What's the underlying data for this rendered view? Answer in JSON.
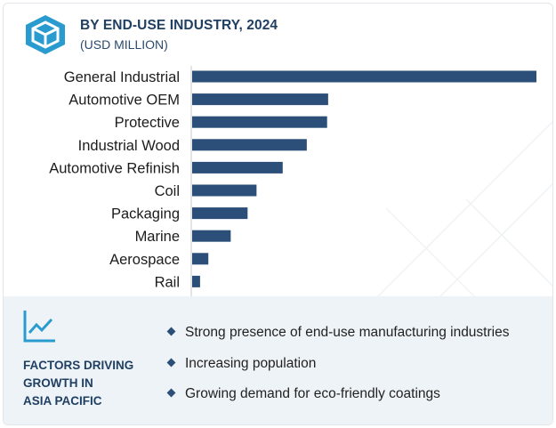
{
  "header": {
    "title": "BY END-USE INDUSTRY, 2024",
    "subtitle": "(USD MILLION)",
    "logo_icon": "cube-logo-icon"
  },
  "colors": {
    "bar": "#2b4f79",
    "accent": "#1f3f63",
    "panel_bg": "#eef3f8",
    "logo_bg": "#2a9bcf"
  },
  "chart_data": {
    "type": "bar",
    "orientation": "horizontal",
    "categories": [
      "General Industrial",
      "Automotive OEM",
      "Protective",
      "Industrial Wood",
      "Automotive Refinish",
      "Coil",
      "Packaging",
      "Marine",
      "Aerospace",
      "Rail"
    ],
    "values": [
      100,
      39.5,
      39.2,
      33.3,
      26.3,
      18.7,
      16.1,
      11.2,
      4.7,
      2.3
    ],
    "value_scale": "relative (axis not labeled)",
    "xlim": [
      0,
      100
    ],
    "grid": false,
    "legend": "none"
  },
  "factors": {
    "icon": "trend-line-icon",
    "title_lines": [
      "FACTORS DRIVING",
      "GROWTH IN",
      "ASIA PACIFIC"
    ],
    "items": [
      "Strong presence of end-use manufacturing industries",
      "Increasing population",
      "Growing demand for eco-friendly coatings"
    ]
  }
}
